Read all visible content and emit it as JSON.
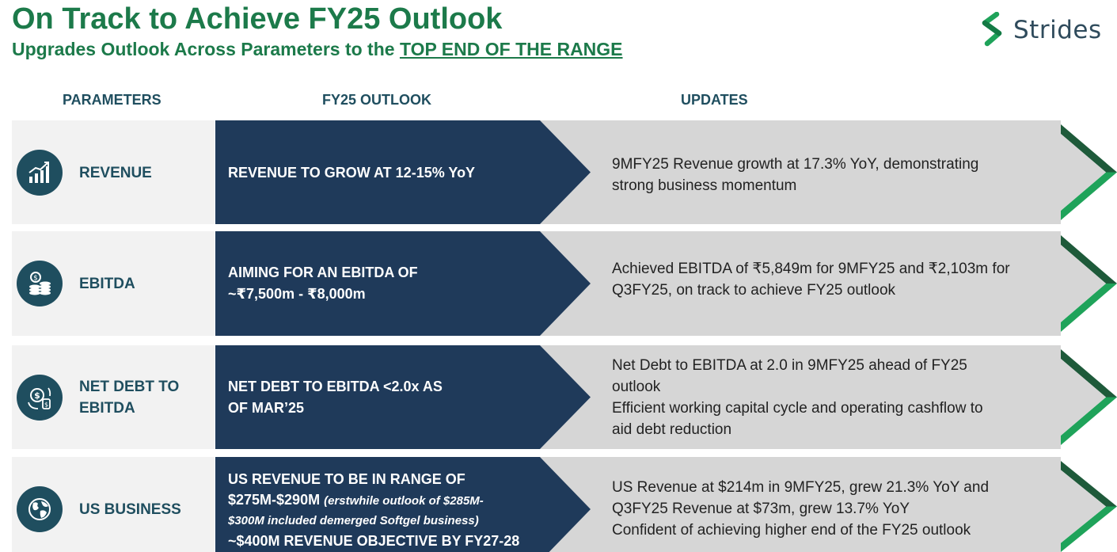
{
  "header": {
    "title": "On Track to Achieve FY25 Outlook",
    "subtitle_prefix": "Upgrades Outlook Across Parameters to the ",
    "subtitle_highlight": "TOP END OF THE RANGE"
  },
  "logo": {
    "text": "Strides",
    "icon": "strides-s-icon"
  },
  "columns": {
    "parameters": "PARAMETERS",
    "outlook": "FY25 OUTLOOK",
    "updates": "UPDATES"
  },
  "colors": {
    "title_green": "#1c7a4a",
    "navy": "#1f3a5a",
    "teal": "#1f4e5f",
    "grey_panel": "#d6d6d6",
    "light_panel": "#f2f2f2",
    "chevron_dark": "#1e5a3a",
    "chevron_light": "#1fa35a"
  },
  "rows": [
    {
      "icon": "growth-chart-icon",
      "parameter": "REVENUE",
      "outlook": "REVENUE TO GROW AT 12-15% YoY",
      "updates": [
        "9MFY25 Revenue growth at 17.3% YoY, demonstrating",
        "strong business momentum"
      ]
    },
    {
      "icon": "coin-stack-icon",
      "parameter": "EBITDA",
      "outlook": [
        "AIMING FOR AN EBITDA OF",
        "~₹7,500m - ₹8,000m"
      ],
      "updates": [
        "Achieved EBITDA of ₹5,849m for 9MFY25 and ₹2,103m for",
        "Q3FY25, on track to achieve FY25 outlook"
      ]
    },
    {
      "icon": "money-cycle-icon",
      "parameter": [
        "NET DEBT TO",
        "EBITDA"
      ],
      "outlook": [
        "NET DEBT TO EBITDA <2.0x AS",
        "OF MAR’25"
      ],
      "updates": [
        "Net Debt to EBITDA at 2.0 in 9MFY25 ahead of FY25",
        "outlook",
        "Efficient working capital cycle and operating cashflow to",
        "aid debt reduction"
      ]
    },
    {
      "icon": "globe-icon",
      "parameter": "US BUSINESS",
      "outlook": {
        "line1": "US REVENUE TO BE IN RANGE OF",
        "line2": "$275M-$290M",
        "note_a": "(erstwhile outlook of $285M-",
        "note_b": "$300M included demerged Softgel business)",
        "line3": "~$400M REVENUE OBJECTIVE BY FY27-28"
      },
      "updates": [
        "US Revenue at $214m in 9MFY25, grew 21.3% YoY and",
        "Q3FY25 Revenue at $73m, grew 13.7% YoY",
        "Confident of achieving higher end of the FY25 outlook"
      ]
    }
  ]
}
